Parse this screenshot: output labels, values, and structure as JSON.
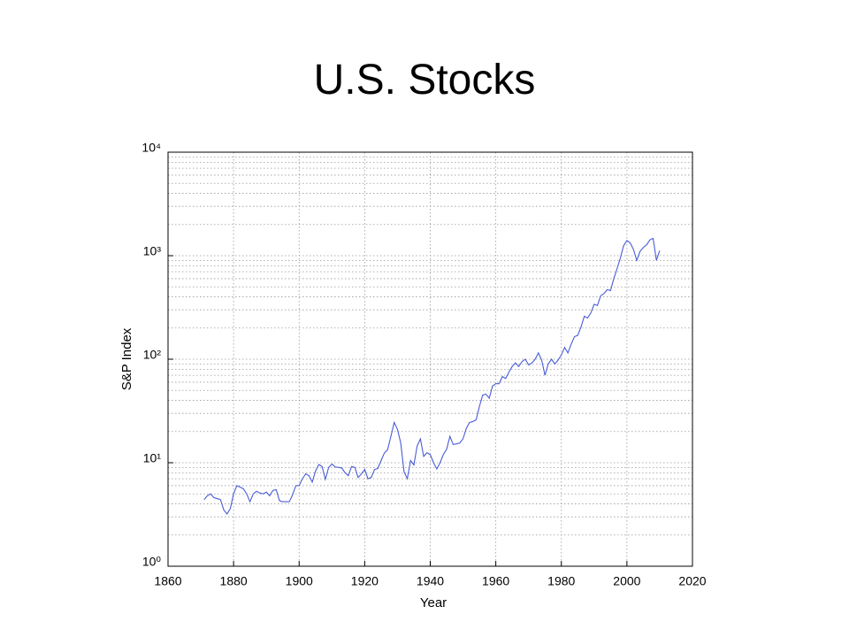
{
  "chart_data": {
    "type": "line",
    "title": "U.S. Stocks",
    "xlabel": "Year",
    "ylabel": "S&P Index",
    "x": [
      1871,
      1872,
      1873,
      1874,
      1875,
      1876,
      1877,
      1878,
      1879,
      1880,
      1881,
      1882,
      1883,
      1884,
      1885,
      1886,
      1887,
      1888,
      1889,
      1890,
      1891,
      1892,
      1893,
      1894,
      1895,
      1896,
      1897,
      1898,
      1899,
      1900,
      1901,
      1902,
      1903,
      1904,
      1905,
      1906,
      1907,
      1908,
      1909,
      1910,
      1911,
      1912,
      1913,
      1914,
      1915,
      1916,
      1917,
      1918,
      1919,
      1920,
      1921,
      1922,
      1923,
      1924,
      1925,
      1926,
      1927,
      1928,
      1929,
      1930,
      1931,
      1932,
      1933,
      1934,
      1935,
      1936,
      1937,
      1938,
      1939,
      1940,
      1941,
      1942,
      1943,
      1944,
      1945,
      1946,
      1947,
      1948,
      1949,
      1950,
      1951,
      1952,
      1953,
      1954,
      1955,
      1956,
      1957,
      1958,
      1959,
      1960,
      1961,
      1962,
      1963,
      1964,
      1965,
      1966,
      1967,
      1968,
      1969,
      1970,
      1971,
      1972,
      1973,
      1974,
      1975,
      1976,
      1977,
      1978,
      1979,
      1980,
      1981,
      1982,
      1983,
      1984,
      1985,
      1986,
      1987,
      1988,
      1989,
      1990,
      1991,
      1992,
      1993,
      1994,
      1995,
      1996,
      1997,
      1998,
      1999,
      2000,
      2001,
      2002,
      2003,
      2004,
      2005,
      2006,
      2007,
      2008,
      2009,
      2010
    ],
    "values": [
      4.4,
      4.8,
      5.0,
      4.6,
      4.5,
      4.4,
      3.5,
      3.2,
      3.6,
      5.0,
      6.0,
      5.8,
      5.6,
      5.0,
      4.2,
      5.0,
      5.3,
      5.1,
      5.0,
      5.2,
      4.8,
      5.4,
      5.5,
      4.3,
      4.2,
      4.2,
      4.2,
      4.9,
      6.0,
      6.0,
      7.0,
      7.8,
      7.5,
      6.5,
      8.3,
      9.6,
      9.2,
      6.9,
      9.0,
      9.7,
      9.1,
      9.0,
      8.9,
      8.0,
      7.5,
      9.2,
      9.0,
      7.2,
      7.8,
      8.6,
      7.0,
      7.2,
      8.6,
      8.8,
      10.5,
      12.4,
      13.4,
      18.0,
      24.5,
      21,
      15.5,
      8.2,
      7.0,
      10.5,
      9.5,
      14.5,
      17.0,
      11.5,
      12.5,
      12.0,
      10.0,
      8.7,
      10.0,
      12.0,
      13.5,
      18.0,
      15.0,
      15.2,
      15.5,
      17.0,
      21.5,
      24.5,
      25.0,
      26,
      35,
      45,
      46,
      42,
      55,
      58,
      58,
      68,
      65,
      75,
      85,
      92,
      85,
      95,
      100,
      88,
      92,
      100,
      115,
      98,
      70,
      90,
      100,
      90,
      98,
      110,
      130,
      115,
      140,
      165,
      170,
      205,
      260,
      250,
      280,
      340,
      330,
      410,
      430,
      470,
      460,
      600,
      750,
      950,
      1250,
      1400,
      1330,
      1150,
      900,
      1100,
      1200,
      1270,
      1420,
      1470,
      900,
      1120
    ],
    "color": "#4a5cd6",
    "xlim": [
      1860,
      2020
    ],
    "xticks": [
      1860,
      1880,
      1900,
      1920,
      1940,
      1960,
      1980,
      2000,
      2020
    ],
    "ylim": [
      1,
      10000
    ],
    "yscale": "log",
    "yticks": [
      {
        "value": 1,
        "label": "10⁰"
      },
      {
        "value": 10,
        "label": "10¹"
      },
      {
        "value": 100,
        "label": "10²"
      },
      {
        "value": 1000,
        "label": "10³"
      },
      {
        "value": 10000,
        "label": "10⁴"
      }
    ],
    "grid": true,
    "minor_grid": true
  }
}
